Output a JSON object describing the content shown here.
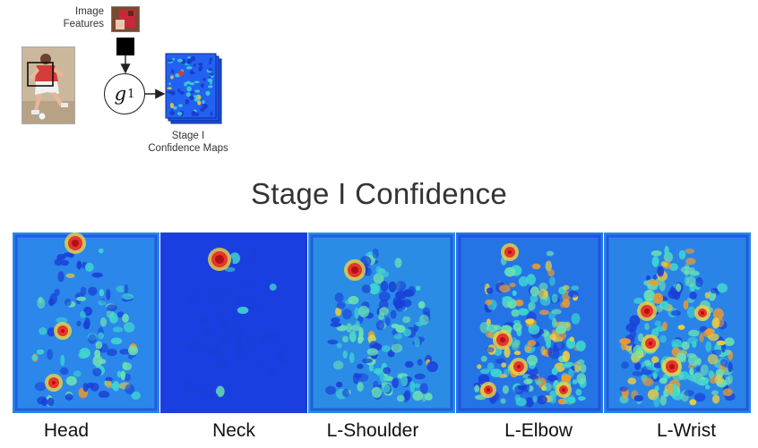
{
  "diagram": {
    "image_features_label": [
      "Image",
      "Features"
    ],
    "node_label": "g",
    "node_subscript": "1",
    "stack_caption": [
      "Stage I",
      "Confidence Maps"
    ]
  },
  "confidence_section": {
    "title": "Stage I Confidence",
    "panels": [
      {
        "label": "Head"
      },
      {
        "label": "Neck"
      },
      {
        "label": "L-Shoulder"
      },
      {
        "label": "L-Elbow"
      },
      {
        "label": "L-Wrist"
      }
    ]
  },
  "colors": {
    "heatmap_low": "#1f5cf0",
    "heatmap_mid": "#3fd6d0",
    "heatmap_warm": "#f2d23a",
    "heatmap_hot": "#d81e1e",
    "node_stroke": "#222222"
  }
}
